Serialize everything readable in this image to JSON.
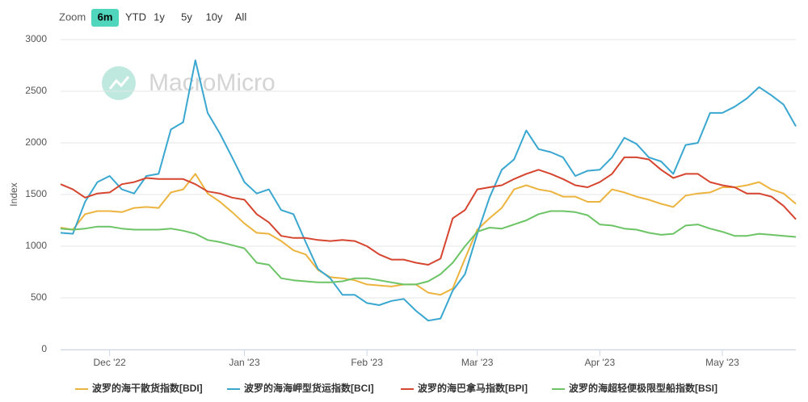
{
  "chart_data": {
    "type": "line",
    "range_selector": {
      "label": "Zoom",
      "buttons": [
        "6m",
        "YTD",
        "1y",
        "5y",
        "10y",
        "All"
      ],
      "selected": 0
    },
    "watermark": "MacroMicro",
    "y_label": "Index",
    "categories": [
      null,
      null,
      null,
      null,
      "Dec '22",
      null,
      null,
      null,
      null,
      null,
      null,
      null,
      null,
      null,
      null,
      "Jan '23",
      null,
      null,
      null,
      null,
      null,
      null,
      null,
      null,
      null,
      "Feb '23",
      null,
      null,
      null,
      null,
      null,
      null,
      null,
      null,
      "Mar '23",
      null,
      null,
      null,
      null,
      null,
      null,
      null,
      null,
      null,
      "Apr '23",
      null,
      null,
      null,
      null,
      null,
      null,
      null,
      null,
      null,
      "May '23",
      null,
      null,
      null,
      null,
      null,
      null
    ],
    "ylim": [
      0,
      3000
    ],
    "yticks": [
      0,
      500,
      1000,
      1500,
      2000,
      2500,
      3000
    ],
    "grid": true,
    "series": [
      {
        "name": "波罗的海干散货指数[BDI]",
        "color": "#ecb43f",
        "values": [
          1180,
          1160,
          1310,
          1340,
          1340,
          1330,
          1370,
          1380,
          1370,
          1520,
          1550,
          1700,
          1510,
          1430,
          1330,
          1220,
          1130,
          1120,
          1050,
          960,
          920,
          770,
          700,
          690,
          670,
          630,
          620,
          610,
          630,
          630,
          550,
          530,
          590,
          880,
          1160,
          1270,
          1370,
          1550,
          1590,
          1550,
          1530,
          1480,
          1480,
          1430,
          1430,
          1550,
          1520,
          1480,
          1450,
          1410,
          1380,
          1490,
          1510,
          1520,
          1570,
          1570,
          1590,
          1620,
          1550,
          1510,
          1410
        ]
      },
      {
        "name": "波罗的海海岬型货运指数[BCI]",
        "color": "#3aa7d0",
        "values": [
          1130,
          1120,
          1430,
          1620,
          1680,
          1550,
          1510,
          1680,
          1700,
          2130,
          2200,
          2800,
          2290,
          2090,
          1860,
          1620,
          1510,
          1550,
          1350,
          1310,
          1040,
          780,
          690,
          530,
          530,
          450,
          430,
          470,
          490,
          375,
          280,
          300,
          570,
          730,
          1120,
          1470,
          1740,
          1840,
          2120,
          1940,
          1910,
          1860,
          1680,
          1730,
          1740,
          1860,
          2050,
          1990,
          1860,
          1820,
          1700,
          1980,
          2000,
          2290,
          2290,
          2350,
          2430,
          2540,
          2460,
          2370,
          2160
        ]
      },
      {
        "name": "波罗的海巴拿马指数[BPI]",
        "color": "#d6452f",
        "values": [
          1600,
          1550,
          1470,
          1510,
          1520,
          1600,
          1620,
          1660,
          1650,
          1650,
          1650,
          1600,
          1530,
          1510,
          1470,
          1450,
          1310,
          1230,
          1100,
          1080,
          1080,
          1060,
          1050,
          1060,
          1050,
          1000,
          920,
          870,
          870,
          840,
          820,
          880,
          1270,
          1350,
          1550,
          1570,
          1590,
          1650,
          1700,
          1740,
          1700,
          1650,
          1590,
          1570,
          1620,
          1700,
          1860,
          1860,
          1840,
          1740,
          1660,
          1700,
          1700,
          1620,
          1590,
          1570,
          1510,
          1510,
          1480,
          1390,
          1260
        ]
      },
      {
        "name": "波罗的海超轻便极限型船指数[BSI]",
        "color": "#6cc466",
        "values": [
          1170,
          1160,
          1170,
          1190,
          1190,
          1170,
          1160,
          1160,
          1160,
          1170,
          1150,
          1120,
          1060,
          1040,
          1010,
          980,
          840,
          820,
          690,
          670,
          660,
          650,
          650,
          660,
          690,
          690,
          670,
          650,
          630,
          630,
          660,
          730,
          840,
          1000,
          1140,
          1180,
          1170,
          1210,
          1250,
          1310,
          1340,
          1340,
          1330,
          1300,
          1210,
          1200,
          1170,
          1160,
          1130,
          1110,
          1120,
          1200,
          1210,
          1170,
          1140,
          1100,
          1100,
          1120,
          1110,
          1100,
          1090
        ]
      }
    ]
  }
}
